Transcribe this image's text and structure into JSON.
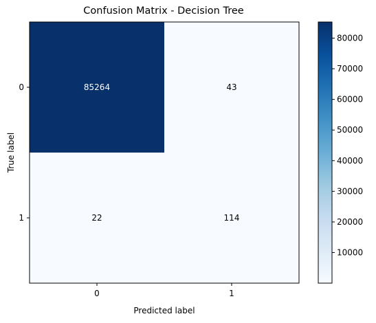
{
  "chart_data": {
    "type": "heatmap",
    "title": "Confusion Matrix - Decision Tree",
    "xlabel": "Predicted label",
    "ylabel": "True label",
    "x_categories": [
      "0",
      "1"
    ],
    "y_categories": [
      "0",
      "1"
    ],
    "values": [
      [
        85264,
        43
      ],
      [
        22,
        114
      ]
    ],
    "colormap": "Blues",
    "colorbar": {
      "range": [
        22,
        85264
      ],
      "ticks": [
        10000,
        20000,
        30000,
        40000,
        50000,
        60000,
        70000,
        80000
      ],
      "tick_labels": [
        "10000",
        "20000",
        "30000",
        "40000",
        "50000",
        "60000",
        "70000",
        "80000"
      ]
    },
    "colors": {
      "low": "#f7fbff",
      "high": "#08306b",
      "text_on_dark": "#ffffff",
      "text_on_light": "#000000"
    }
  }
}
